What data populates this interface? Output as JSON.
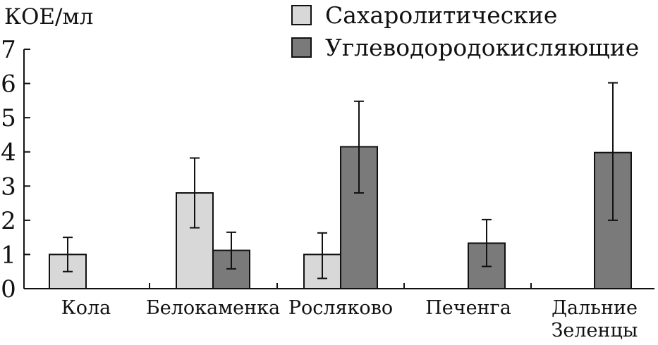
{
  "chart_data": {
    "type": "bar",
    "ylabel": "КОЕ/мл",
    "ylim": [
      0,
      7
    ],
    "yticks": [
      "0",
      "1",
      "2",
      "3",
      "4",
      "5",
      "6",
      "7"
    ],
    "categories": [
      [
        "Кола"
      ],
      [
        "Белокаменка"
      ],
      [
        "Росляково"
      ],
      [
        "Печенга"
      ],
      [
        "Дальние",
        "Зеленцы"
      ]
    ],
    "series": [
      {
        "name": "Сахаролитические",
        "color": "#d8d8d8",
        "values": [
          1.0,
          2.8,
          1.0,
          null,
          null
        ],
        "err_low": [
          0.5,
          1.78,
          0.3,
          null,
          null
        ],
        "err_high": [
          1.5,
          3.82,
          1.63,
          null,
          null
        ]
      },
      {
        "name": "Углеводородокисляющие",
        "color": "#7a7a7a",
        "values": [
          null,
          1.12,
          4.15,
          1.33,
          3.98
        ],
        "err_low": [
          null,
          0.58,
          2.8,
          0.65,
          2.0
        ],
        "err_high": [
          null,
          1.65,
          5.48,
          2.02,
          6.02
        ]
      }
    ],
    "grid": false,
    "legend_position": "top-right"
  }
}
